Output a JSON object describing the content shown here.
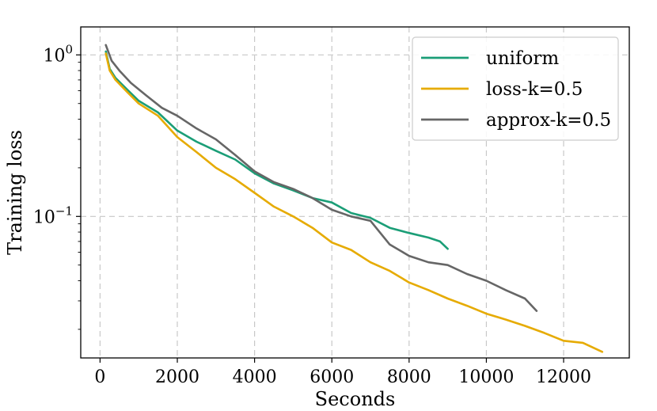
{
  "chart_data": {
    "type": "line",
    "title": "",
    "xlabel": "Seconds",
    "ylabel": "Training loss",
    "xscale": "linear",
    "yscale": "log",
    "xlim": [
      -500,
      13700
    ],
    "ylim": [
      0.0133,
      1.49
    ],
    "xticks": [
      0,
      2000,
      4000,
      6000,
      8000,
      10000,
      12000
    ],
    "xtick_labels": [
      "0",
      "2000",
      "4000",
      "6000",
      "8000",
      "10000",
      "12000"
    ],
    "yticks": [
      1.0,
      0.1
    ],
    "ytick_labels": [
      {
        "base": "10",
        "exp": "0"
      },
      {
        "base": "10",
        "exp": "−1"
      }
    ],
    "grid": true,
    "legend_position": "upper-right",
    "series": [
      {
        "name": "uniform",
        "color": "#1b9e77",
        "points": [
          [
            150,
            1.05
          ],
          [
            250,
            0.82
          ],
          [
            400,
            0.72
          ],
          [
            700,
            0.61
          ],
          [
            1000,
            0.52
          ],
          [
            1500,
            0.44
          ],
          [
            2000,
            0.34
          ],
          [
            2500,
            0.29
          ],
          [
            3000,
            0.255
          ],
          [
            3500,
            0.225
          ],
          [
            4000,
            0.185
          ],
          [
            4500,
            0.16
          ],
          [
            5000,
            0.145
          ],
          [
            5500,
            0.13
          ],
          [
            6000,
            0.122
          ],
          [
            6500,
            0.105
          ],
          [
            7000,
            0.098
          ],
          [
            7500,
            0.085
          ],
          [
            8000,
            0.079
          ],
          [
            8500,
            0.074
          ],
          [
            8800,
            0.07
          ],
          [
            9000,
            0.063
          ]
        ]
      },
      {
        "name": "loss-k=0.5",
        "color": "#e6ab02",
        "points": [
          [
            150,
            1.02
          ],
          [
            250,
            0.8
          ],
          [
            400,
            0.7
          ],
          [
            700,
            0.59
          ],
          [
            1000,
            0.5
          ],
          [
            1500,
            0.42
          ],
          [
            2000,
            0.31
          ],
          [
            2500,
            0.25
          ],
          [
            3000,
            0.2
          ],
          [
            3500,
            0.17
          ],
          [
            4000,
            0.14
          ],
          [
            4500,
            0.115
          ],
          [
            5000,
            0.1
          ],
          [
            5500,
            0.085
          ],
          [
            6000,
            0.069
          ],
          [
            6500,
            0.062
          ],
          [
            7000,
            0.052
          ],
          [
            7500,
            0.046
          ],
          [
            8000,
            0.039
          ],
          [
            8500,
            0.035
          ],
          [
            9000,
            0.031
          ],
          [
            9500,
            0.028
          ],
          [
            10000,
            0.025
          ],
          [
            10500,
            0.023
          ],
          [
            11000,
            0.021
          ],
          [
            11500,
            0.019
          ],
          [
            12000,
            0.017
          ],
          [
            12500,
            0.0165
          ],
          [
            13000,
            0.0145
          ]
        ]
      },
      {
        "name": "approx-k=0.5",
        "color": "#666666",
        "points": [
          [
            150,
            1.15
          ],
          [
            300,
            0.92
          ],
          [
            500,
            0.8
          ],
          [
            800,
            0.67
          ],
          [
            1200,
            0.56
          ],
          [
            1600,
            0.47
          ],
          [
            2000,
            0.42
          ],
          [
            2500,
            0.35
          ],
          [
            3000,
            0.3
          ],
          [
            3500,
            0.24
          ],
          [
            4000,
            0.19
          ],
          [
            4500,
            0.163
          ],
          [
            5000,
            0.148
          ],
          [
            5500,
            0.13
          ],
          [
            6000,
            0.11
          ],
          [
            6500,
            0.1
          ],
          [
            7000,
            0.094
          ],
          [
            7500,
            0.067
          ],
          [
            8000,
            0.057
          ],
          [
            8500,
            0.052
          ],
          [
            9000,
            0.05
          ],
          [
            9500,
            0.044
          ],
          [
            10000,
            0.04
          ],
          [
            10500,
            0.035
          ],
          [
            11000,
            0.031
          ],
          [
            11300,
            0.026
          ]
        ]
      }
    ]
  }
}
